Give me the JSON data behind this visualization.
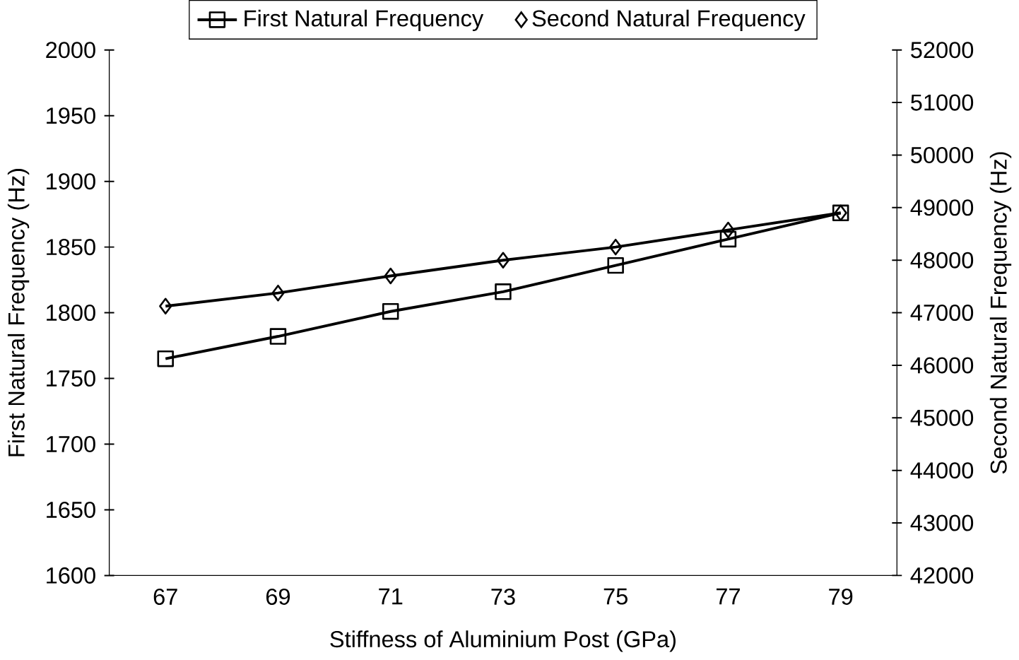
{
  "chart_data": {
    "type": "line",
    "xlabel": "Stiffness of Aluminium Post (GPa)",
    "ylabel": "First Natural Frequency (Hz)",
    "y2label": "Second Natural Frequency (Hz)",
    "categories": [
      "67",
      "69",
      "71",
      "73",
      "75",
      "77",
      "79"
    ],
    "series": [
      {
        "name": "First Natural Frequency",
        "color": "#000000",
        "marker": "square",
        "values": [
          1765,
          1782,
          1801,
          1816,
          1836,
          1856,
          1876
        ]
      },
      {
        "name": "Second Natural Frequency",
        "color": "#000000",
        "marker": "diamond",
        "axis": "y2",
        "values": [
          47125,
          47375,
          47700,
          48000,
          48250,
          48575,
          48900
        ]
      }
    ],
    "ylim": [
      1600,
      2000
    ],
    "yticks": [
      1600,
      1650,
      1700,
      1750,
      1800,
      1850,
      1900,
      1950,
      2000
    ],
    "y2lim": [
      42000,
      52000
    ],
    "y2ticks": [
      42000,
      43000,
      44000,
      45000,
      46000,
      47000,
      48000,
      49000,
      50000,
      51000,
      52000
    ],
    "legend": "top",
    "grid": false,
    "line_style": "solid"
  }
}
